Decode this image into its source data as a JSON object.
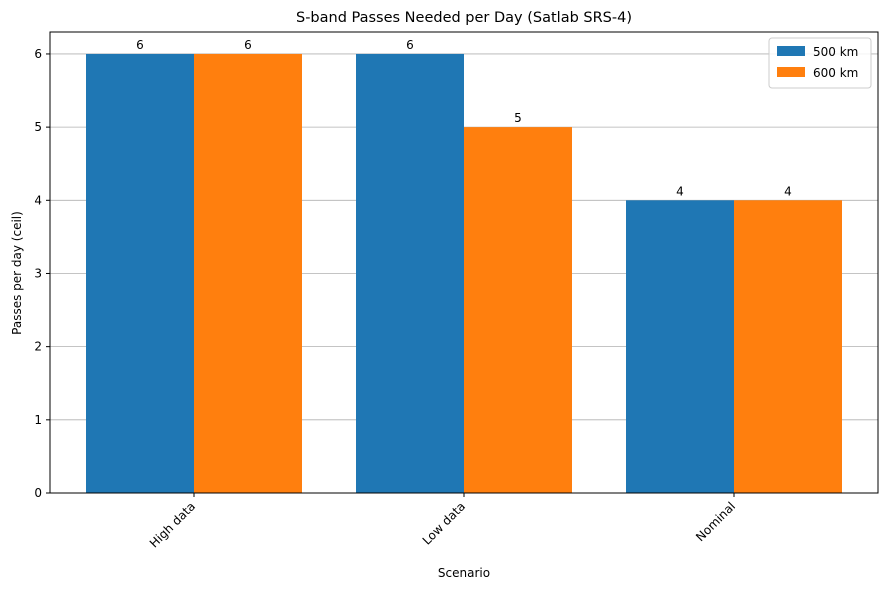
{
  "chart_data": {
    "type": "bar",
    "title": "S-band Passes Needed per Day (Satlab SRS-4)",
    "xlabel": "Scenario",
    "ylabel": "Passes per day (ceil)",
    "categories": [
      "High data",
      "Low data",
      "Nominal"
    ],
    "series": [
      {
        "name": "500 km",
        "values": [
          6,
          6,
          4
        ],
        "color": "#1f77b4"
      },
      {
        "name": "600 km",
        "values": [
          6,
          5,
          4
        ],
        "color": "#ff7f0e"
      }
    ],
    "ylim": [
      0,
      6.3
    ],
    "yticks": [
      "0",
      "1",
      "2",
      "3",
      "4",
      "5",
      "6"
    ],
    "grid": "y",
    "legend_position": "top-right"
  }
}
